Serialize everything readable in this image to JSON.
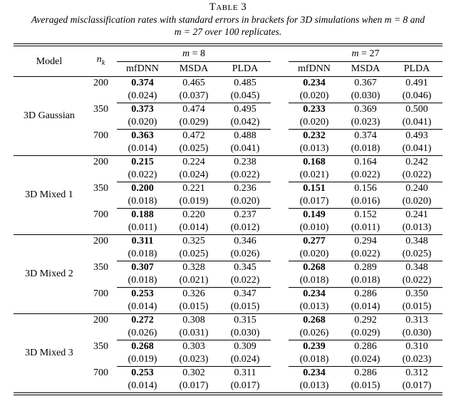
{
  "table_label": "Table 3",
  "caption_line1": "Averaged misclassification rates with standard errors in brackets for 3D simulations when m = 8 and",
  "caption_line2": "m = 27 over 100 replicates.",
  "header": {
    "model": "Model",
    "nk_base": "n",
    "nk_sub": "k",
    "group_m8_var": "m",
    "group_m8_rest": " = 8",
    "group_m27_var": "m",
    "group_m27_rest": " = 27",
    "methods_m8": [
      "mfDNN",
      "MSDA",
      "PLDA"
    ],
    "methods_m27": [
      "mfDNN",
      "MSDA",
      "PLDA"
    ]
  },
  "bold_method_index": 0,
  "groups": [
    {
      "model": "3D Gaussian",
      "rows": [
        {
          "nk": "200",
          "values_m8": [
            "0.374",
            "0.465",
            "0.485"
          ],
          "se_m8": [
            "(0.024)",
            "(0.037)",
            "(0.045)"
          ],
          "values_m27": [
            "0.234",
            "0.367",
            "0.491"
          ],
          "se_m27": [
            "(0.020)",
            "(0.030)",
            "(0.046)"
          ]
        },
        {
          "nk": "350",
          "values_m8": [
            "0.373",
            "0.474",
            "0.495"
          ],
          "se_m8": [
            "(0.020)",
            "(0.029)",
            "(0.042)"
          ],
          "values_m27": [
            "0.233",
            "0.369",
            "0.500"
          ],
          "se_m27": [
            "(0.020)",
            "(0.023)",
            "(0.041)"
          ]
        },
        {
          "nk": "700",
          "values_m8": [
            "0.363",
            "0.472",
            "0.488"
          ],
          "se_m8": [
            "(0.014)",
            "(0.025)",
            "(0.041)"
          ],
          "values_m27": [
            "0.232",
            "0.374",
            "0.493"
          ],
          "se_m27": [
            "(0.013)",
            "(0.018)",
            "(0.041)"
          ]
        }
      ]
    },
    {
      "model": "3D Mixed 1",
      "rows": [
        {
          "nk": "200",
          "values_m8": [
            "0.215",
            "0.224",
            "0.238"
          ],
          "se_m8": [
            "(0.022)",
            "(0.024)",
            "(0.022)"
          ],
          "values_m27": [
            "0.168",
            "0.164",
            "0.242"
          ],
          "se_m27": [
            "(0.021)",
            "(0.022)",
            "(0.022)"
          ]
        },
        {
          "nk": "350",
          "values_m8": [
            "0.200",
            "0.221",
            "0.236"
          ],
          "se_m8": [
            "(0.018)",
            "(0.019)",
            "(0.020)"
          ],
          "values_m27": [
            "0.151",
            "0.156",
            "0.240"
          ],
          "se_m27": [
            "(0.017)",
            "(0.016)",
            "(0.020)"
          ]
        },
        {
          "nk": "700",
          "values_m8": [
            "0.188",
            "0.220",
            "0.237"
          ],
          "se_m8": [
            "(0.011)",
            "(0.014)",
            "(0.012)"
          ],
          "values_m27": [
            "0.149",
            "0.152",
            "0.241"
          ],
          "se_m27": [
            "(0.010)",
            "(0.011)",
            "(0.013)"
          ]
        }
      ]
    },
    {
      "model": "3D Mixed 2",
      "rows": [
        {
          "nk": "200",
          "values_m8": [
            "0.311",
            "0.325",
            "0.346"
          ],
          "se_m8": [
            "(0.018)",
            "(0.025)",
            "(0.026)"
          ],
          "values_m27": [
            "0.277",
            "0.294",
            "0.348"
          ],
          "se_m27": [
            "(0.020)",
            "(0.022)",
            "(0.025)"
          ]
        },
        {
          "nk": "350",
          "values_m8": [
            "0.307",
            "0.328",
            "0.345"
          ],
          "se_m8": [
            "(0.018)",
            "(0.021)",
            "(0.022)"
          ],
          "values_m27": [
            "0.268",
            "0.289",
            "0.348"
          ],
          "se_m27": [
            "(0.018)",
            "(0.018)",
            "(0.022)"
          ]
        },
        {
          "nk": "700",
          "values_m8": [
            "0.253",
            "0.326",
            "0.347"
          ],
          "se_m8": [
            "(0.014)",
            "(0.015)",
            "(0.015)"
          ],
          "values_m27": [
            "0.234",
            "0.286",
            "0.350"
          ],
          "se_m27": [
            "(0.013)",
            "(0.014)",
            "(0.015)"
          ]
        }
      ]
    },
    {
      "model": "3D Mixed 3",
      "rows": [
        {
          "nk": "200",
          "values_m8": [
            "0.272",
            "0.308",
            "0.315"
          ],
          "se_m8": [
            "(0.026)",
            "(0.031)",
            "(0.030)"
          ],
          "values_m27": [
            "0.268",
            "0.292",
            "0.313"
          ],
          "se_m27": [
            "(0.026)",
            "(0.029)",
            "(0.030)"
          ]
        },
        {
          "nk": "350",
          "values_m8": [
            "0.268",
            "0.303",
            "0.309"
          ],
          "se_m8": [
            "(0.019)",
            "(0.023)",
            "(0.024)"
          ],
          "values_m27": [
            "0.239",
            "0.286",
            "0.310"
          ],
          "se_m27": [
            "(0.018)",
            "(0.024)",
            "(0.023)"
          ]
        },
        {
          "nk": "700",
          "values_m8": [
            "0.253",
            "0.302",
            "0.311"
          ],
          "se_m8": [
            "(0.014)",
            "(0.017)",
            "(0.017)"
          ],
          "values_m27": [
            "0.234",
            "0.286",
            "0.312"
          ],
          "se_m27": [
            "(0.013)",
            "(0.015)",
            "(0.017)"
          ]
        }
      ]
    }
  ]
}
